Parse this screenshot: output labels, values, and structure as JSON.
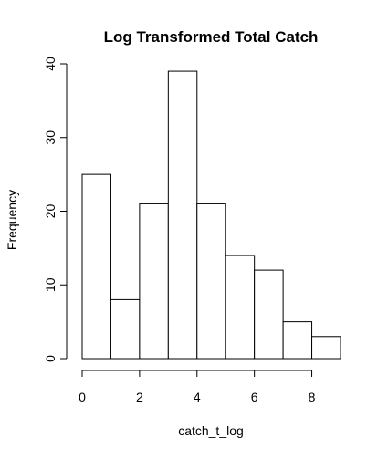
{
  "chart_data": {
    "type": "bar",
    "title": "Log Transformed Total Catch",
    "xlabel": "catch_t_log",
    "ylabel": "Frequency",
    "bins": [
      {
        "x0": 0,
        "x1": 1,
        "count": 25
      },
      {
        "x0": 1,
        "x1": 2,
        "count": 8
      },
      {
        "x0": 2,
        "x1": 3,
        "count": 21
      },
      {
        "x0": 3,
        "x1": 4,
        "count": 39
      },
      {
        "x0": 4,
        "x1": 5,
        "count": 21
      },
      {
        "x0": 5,
        "x1": 6,
        "count": 14
      },
      {
        "x0": 6,
        "x1": 7,
        "count": 12
      },
      {
        "x0": 7,
        "x1": 8,
        "count": 5
      },
      {
        "x0": 8,
        "x1": 9,
        "count": 3
      }
    ],
    "xlim": [
      0,
      9
    ],
    "ylim": [
      0,
      40
    ],
    "xticks": [
      0,
      2,
      4,
      6,
      8
    ],
    "yticks": [
      0,
      10,
      20,
      30,
      40
    ],
    "grid": false,
    "bar_fill": "#ffffff",
    "bar_stroke": "#000000"
  }
}
